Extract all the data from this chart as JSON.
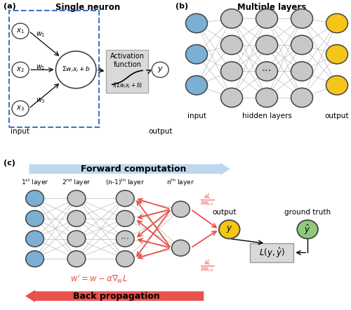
{
  "panel_a_title": "Single neuron",
  "panel_b_title": "Multiple layers",
  "panel_c_forward": "Forward computation",
  "panel_c_back": "Back propagation",
  "input_label": "input",
  "output_label": "output",
  "hidden_layers_label": "hidden layers",
  "ground_truth_label": "ground truth",
  "node_color_gray": "#C8C8C8",
  "node_color_blue": "#7BAFD4",
  "node_color_yellow": "#F5C518",
  "node_color_green": "#90C97C",
  "node_edge_color": "#444444",
  "arrow_color_red": "#E8524A",
  "arrow_color_forward": "#BDD7EE",
  "dashed_box_color": "#4472C4",
  "activation_box_color": "#D9D9D9",
  "line_color_gray": "#BBBBBB",
  "white": "#FFFFFF"
}
